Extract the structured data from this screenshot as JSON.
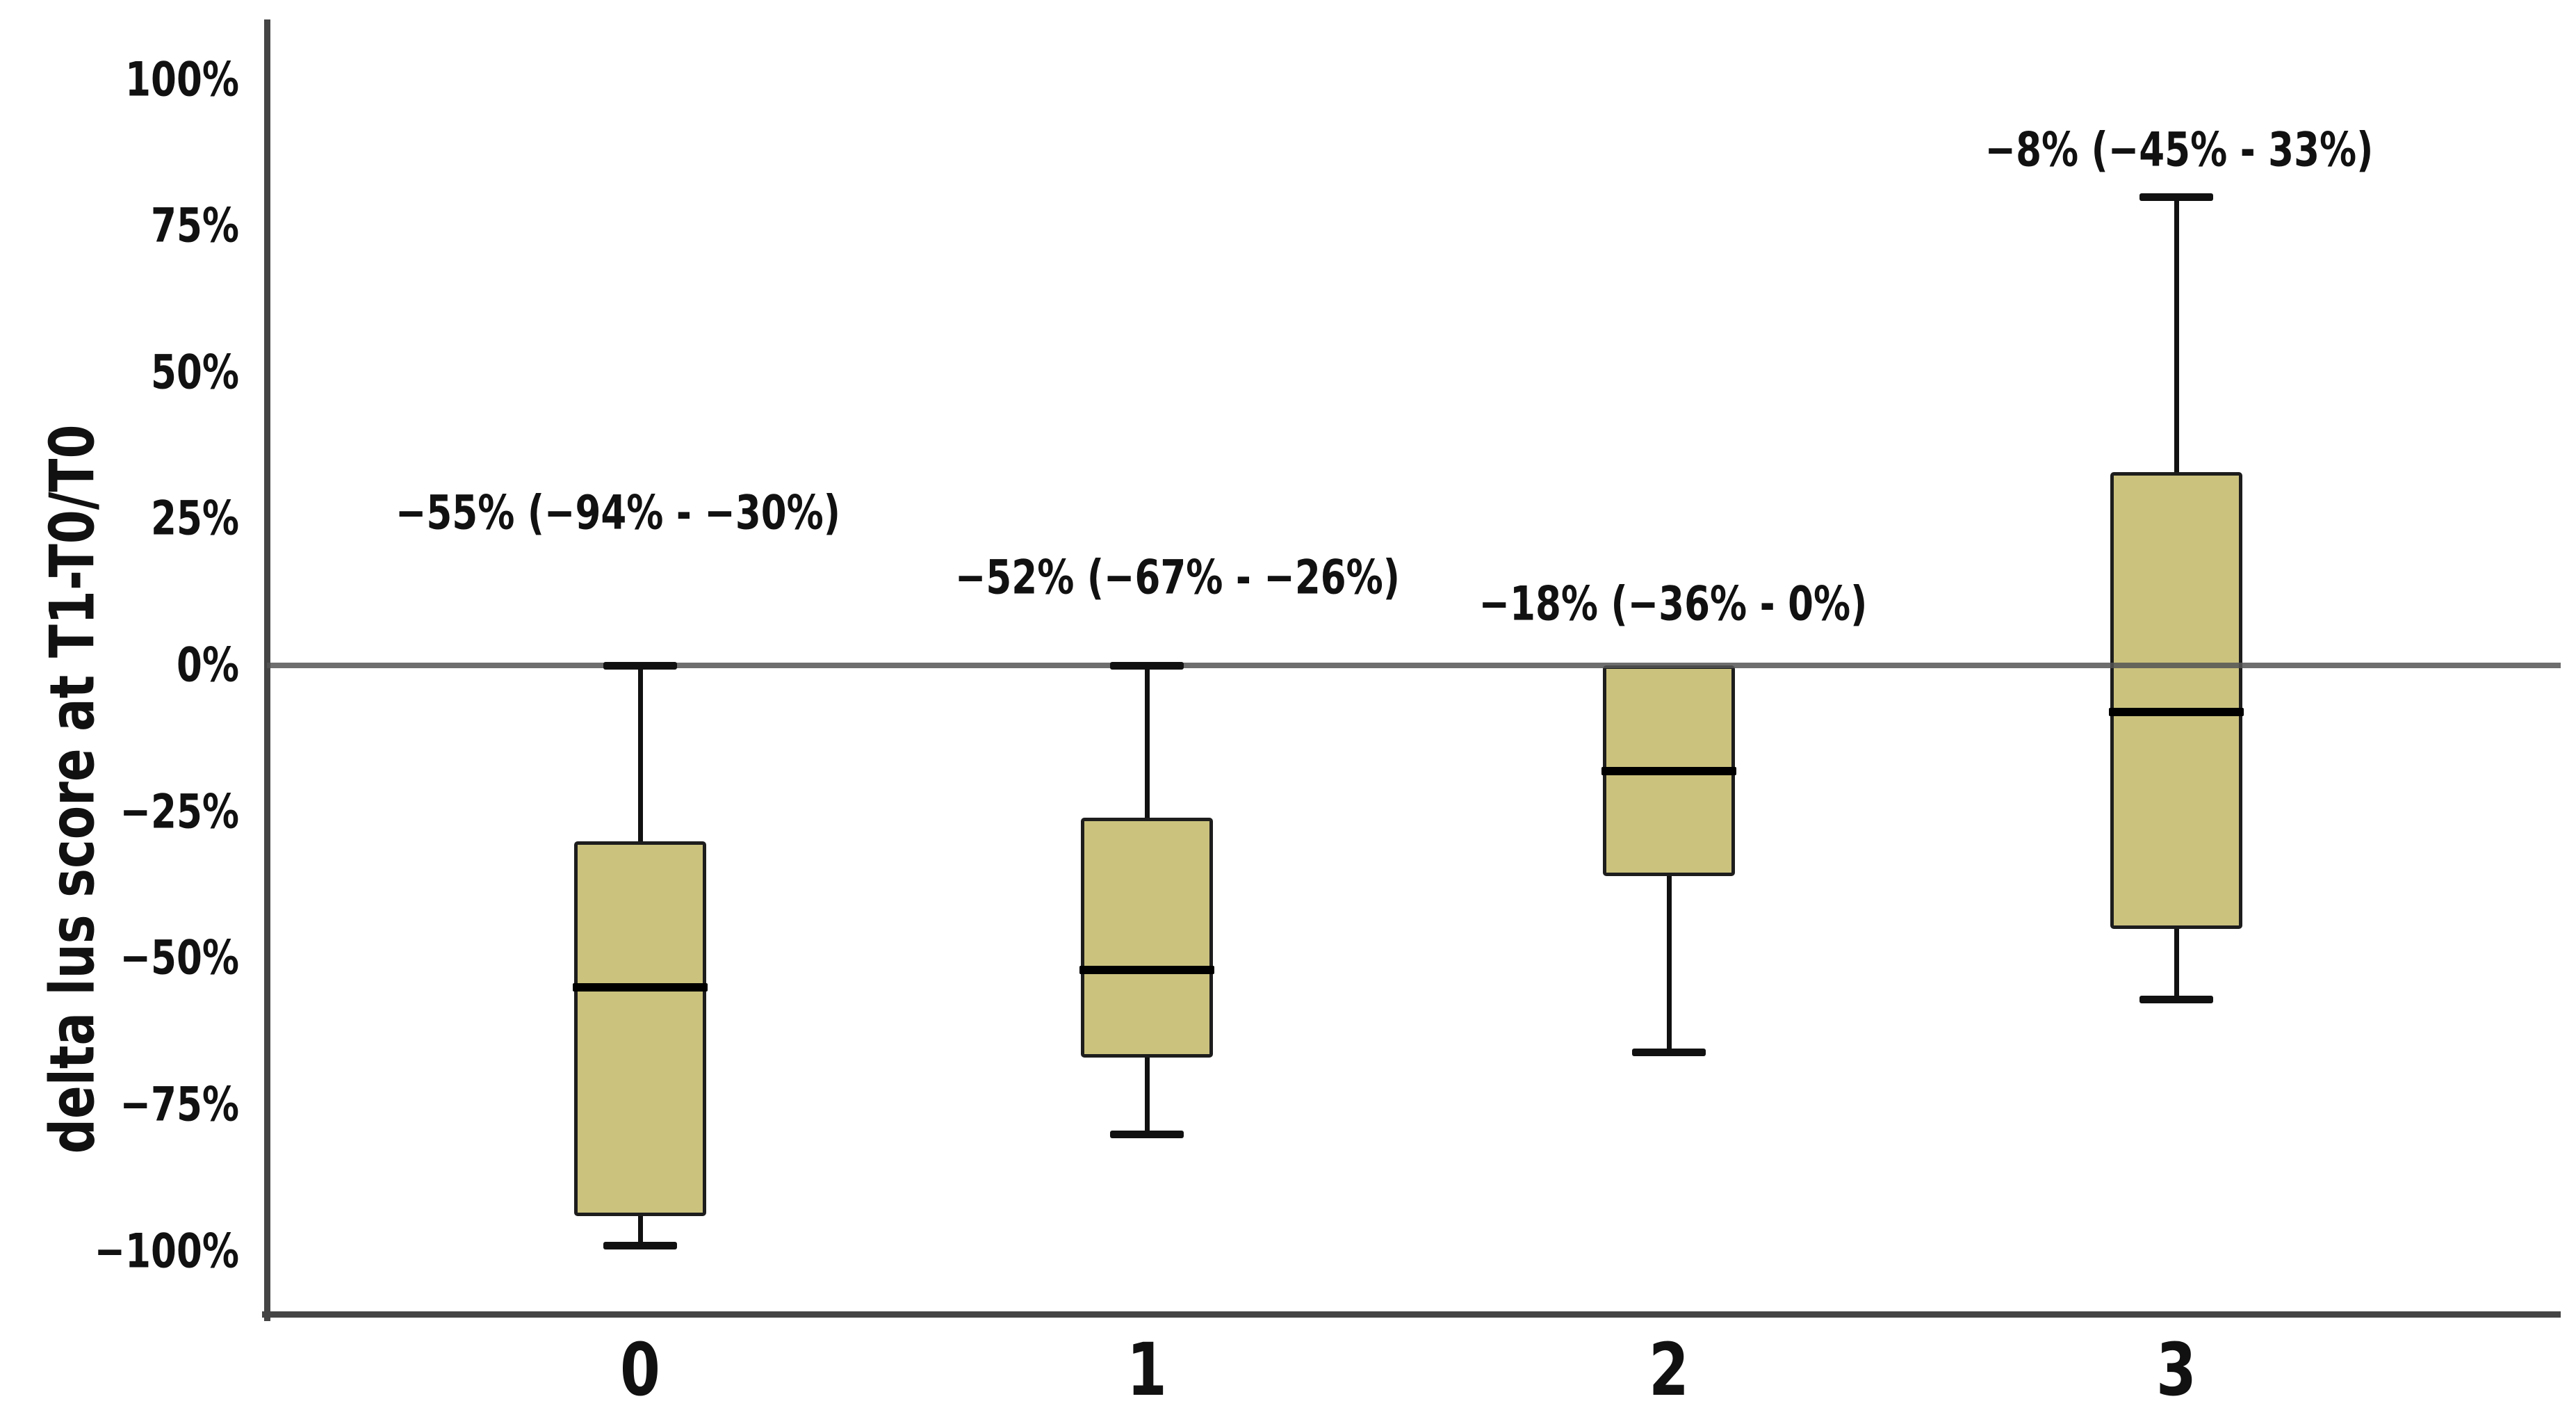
{
  "figure": {
    "background": "#ffffff"
  },
  "y_axis": {
    "title": "delta lus score at T1-T0/T0",
    "tick_labels": [
      "100%",
      "75%",
      "50%",
      "25%",
      "0%",
      "−25%",
      "−50%",
      "−75%",
      "−100%"
    ],
    "tick_values": [
      100,
      75,
      50,
      25,
      0,
      -25,
      -50,
      -75,
      -100
    ]
  },
  "x_axis": {
    "tick_labels": [
      "0",
      "1",
      "2",
      "3"
    ]
  },
  "chart_data": {
    "type": "box",
    "title": "",
    "xlabel": "",
    "ylabel": "delta lus score at T1-T0/T0",
    "categories": [
      "0",
      "1",
      "2",
      "3"
    ],
    "ylim": [
      -111,
      110
    ],
    "y_ticks_pct": [
      100,
      75,
      50,
      25,
      0,
      -25,
      -50,
      -75,
      -100
    ],
    "grid": "off",
    "legend": "none",
    "reference_line_pct": 0,
    "series": [
      {
        "category": "0",
        "whisker_low": -99,
        "q1": -94,
        "median": -55,
        "q3": -30,
        "whisker_high": 0,
        "label": "−55% (−94% - −30%)",
        "label_y_pct": 26
      },
      {
        "category": "1",
        "whisker_low": -80,
        "q1": -67,
        "median": -52,
        "q3": -26,
        "whisker_high": 0,
        "label": "−52% (−67% - −26%)",
        "label_y_pct": 15
      },
      {
        "category": "2",
        "whisker_low": -66,
        "q1": -36,
        "median": -18,
        "q3": 0,
        "whisker_high": 0,
        "label": "−18% (−36% - 0%)",
        "label_y_pct": 10.5
      },
      {
        "category": "3",
        "whisker_low": -57,
        "q1": -45,
        "median": -8,
        "q3": 33,
        "whisker_high": 80,
        "label": "−8% (−45% - 33%)",
        "label_y_pct": 88
      }
    ],
    "colors": {
      "box_fill": "#cbc27e",
      "box_border": "#1d1d1d",
      "median": "#000000",
      "whisker": "#111111",
      "axis": "#454545",
      "reference_line": "#555555",
      "text": "#111111"
    }
  }
}
